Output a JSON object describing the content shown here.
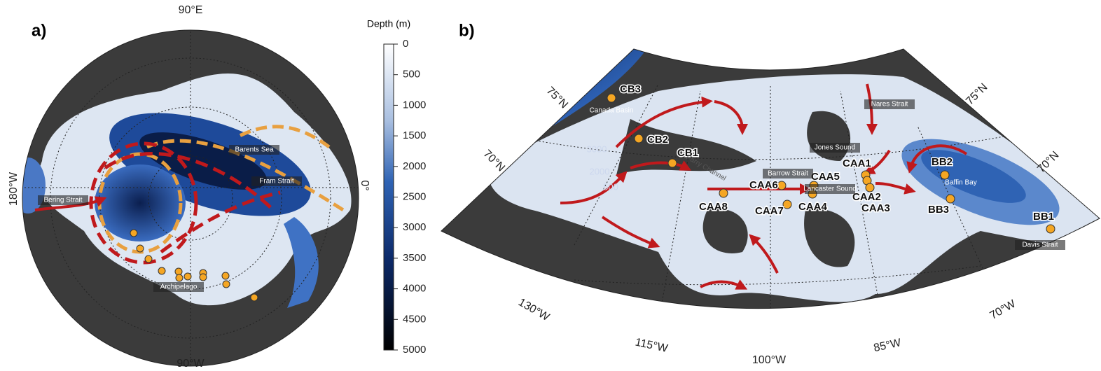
{
  "panel_a": {
    "label": "a)",
    "lon_labels": [
      "90°E",
      "90°W",
      "180°W",
      "0°"
    ],
    "places": [
      "Barents Sea",
      "Fram Strait",
      "Bering Strait",
      "Archipelago"
    ]
  },
  "colorbar": {
    "title": "Depth (m)",
    "lim": [
      0,
      5000
    ],
    "ticks": [
      0,
      500,
      1000,
      1500,
      2000,
      2500,
      3000,
      3500,
      4000,
      4500,
      5000
    ]
  },
  "panel_b": {
    "label": "b)",
    "stations": [
      "CB3",
      "CB2",
      "CB1",
      "CAA6",
      "CAA5",
      "CAA8",
      "CAA7",
      "CAA4",
      "CAA1",
      "CAA2",
      "CAA3",
      "BB2",
      "BB3",
      "BB1"
    ],
    "places": [
      "Canada Basin",
      "Barrow Strait",
      "Lancaster Sound",
      "Jones Sound",
      "Nares Strait",
      "Baffin Bay",
      "Davis Strait",
      "Parry Channel"
    ],
    "contour_labels": [
      3000,
      2000,
      500
    ],
    "lat_labels": [
      "75°N",
      "70°N",
      "75°N",
      "70°N"
    ],
    "lon_labels": [
      "130°W",
      "115°W",
      "100°W",
      "85°W",
      "70°W"
    ]
  }
}
